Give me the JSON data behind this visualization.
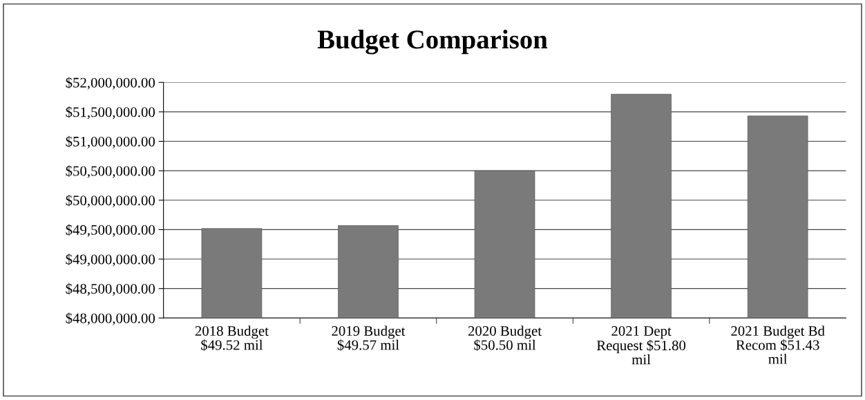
{
  "chart_data": {
    "type": "bar",
    "title": "Budget Comparison",
    "categories": [
      "2018 Budget $49.52 mil",
      "2019 Budget $49.57 mil",
      "2020 Budget $50.50 mil",
      "2021 Dept Request $51.80 mil",
      "2021 Budget Bd Recom $51.43 mil"
    ],
    "values": [
      49520000,
      49570000,
      50500000,
      51800000,
      51430000
    ],
    "color": "#7a7a7a",
    "ylim": [
      48000000,
      52000000
    ],
    "yticks": [
      {
        "value": 48000000,
        "label": "$48,000,000.00"
      },
      {
        "value": 48500000,
        "label": "$48,500,000.00"
      },
      {
        "value": 49000000,
        "label": "$49,000,000.00"
      },
      {
        "value": 49500000,
        "label": "$49,500,000.00"
      },
      {
        "value": 50000000,
        "label": "$50,000,000.00"
      },
      {
        "value": 50500000,
        "label": "$50,500,000.00"
      },
      {
        "value": 51000000,
        "label": "$51,000,000.00"
      },
      {
        "value": 51500000,
        "label": "$51,500,000.00"
      },
      {
        "value": 52000000,
        "label": "$52,000,000.00"
      }
    ],
    "grid": "y"
  }
}
